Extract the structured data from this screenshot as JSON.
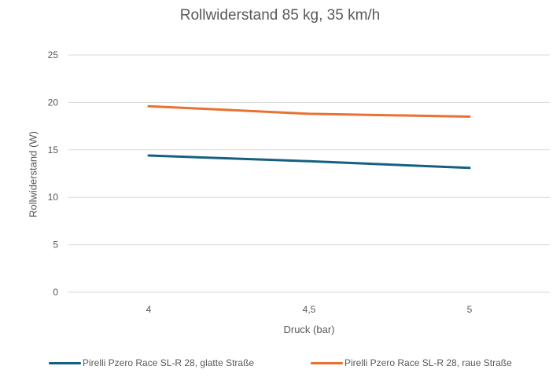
{
  "chart_data": {
    "type": "line",
    "title": "Rollwiderstand 85 kg, 35 km/h",
    "xlabel": "Druck (bar)",
    "ylabel": "Rollwiderstand (W)",
    "categories": [
      "4",
      "4,5",
      "5"
    ],
    "ylim": [
      0,
      25
    ],
    "yticks": [
      "0",
      "5",
      "10",
      "15",
      "20",
      "25"
    ],
    "grid": true,
    "legend_position": "bottom",
    "series": [
      {
        "name": "Pirelli Pzero Race SL-R 28, glatte Straße",
        "color": "#156082",
        "values": [
          14.4,
          13.8,
          13.1
        ]
      },
      {
        "name": "Pirelli Pzero Race SL-R 28, raue Straße",
        "color": "#E97132",
        "values": [
          19.6,
          18.8,
          18.5
        ]
      }
    ]
  }
}
